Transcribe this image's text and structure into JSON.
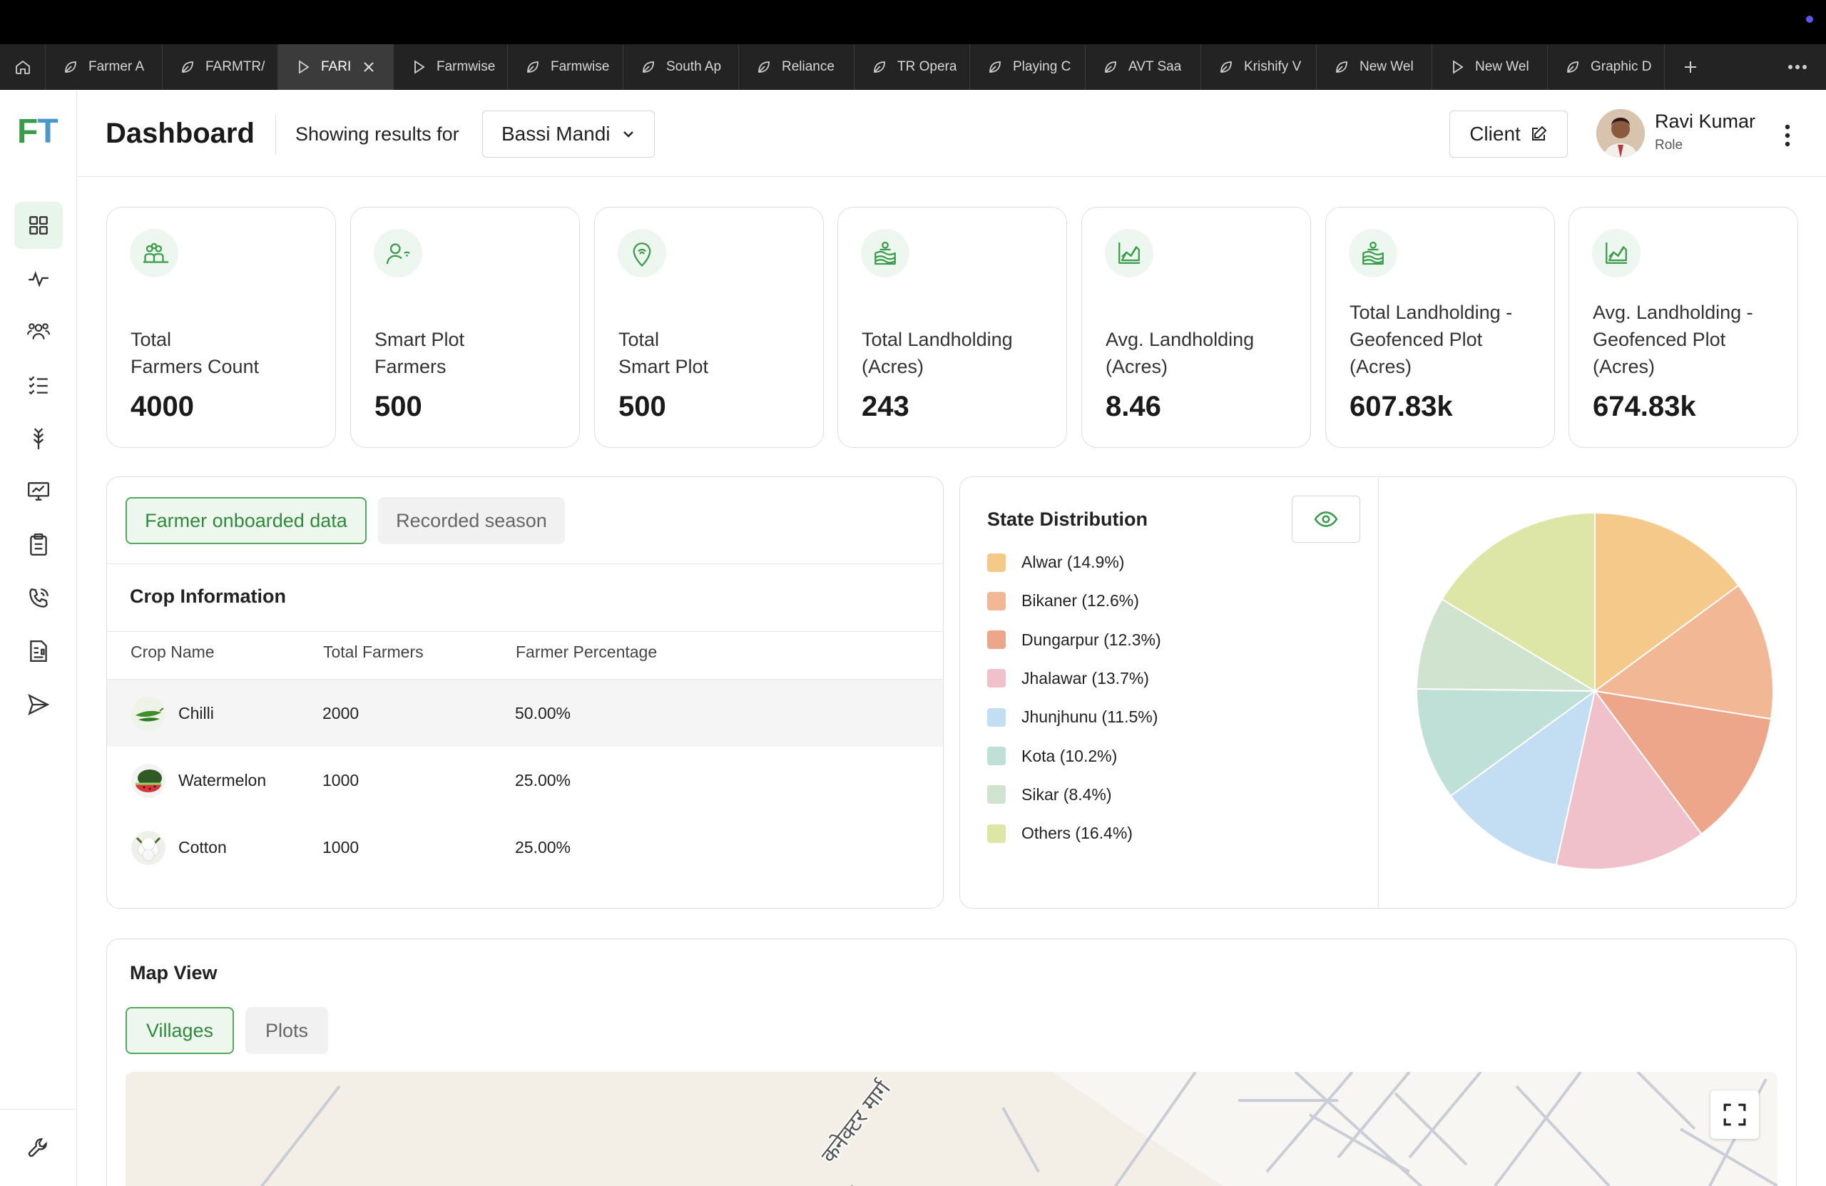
{
  "browser": {
    "tabs": [
      {
        "label": "Farmer A",
        "icon": "leaf-icon",
        "active": false
      },
      {
        "label": "FARMTR/",
        "icon": "leaf-icon",
        "active": false
      },
      {
        "label": "FARI",
        "icon": "play-icon",
        "active": true
      },
      {
        "label": "Farmwise",
        "icon": "play-icon",
        "active": false
      },
      {
        "label": "Farmwise",
        "icon": "leaf-icon",
        "active": false
      },
      {
        "label": "South Ap",
        "icon": "leaf-icon",
        "active": false
      },
      {
        "label": "Reliance",
        "icon": "leaf-icon",
        "active": false
      },
      {
        "label": "TR Opera",
        "icon": "leaf-icon",
        "active": false
      },
      {
        "label": "Playing C",
        "icon": "leaf-icon",
        "active": false
      },
      {
        "label": "AVT Saa",
        "icon": "leaf-icon",
        "active": false
      },
      {
        "label": "Krishify V",
        "icon": "leaf-icon",
        "active": false
      },
      {
        "label": "New Wel",
        "icon": "leaf-icon",
        "active": false
      },
      {
        "label": "New Wel",
        "icon": "play-icon",
        "active": false
      },
      {
        "label": "Graphic D",
        "icon": "leaf-icon",
        "active": false
      }
    ]
  },
  "app": {
    "logo_f": "F",
    "logo_t": "T",
    "brand_green": "#3a9b4b",
    "brand_blue": "#4a97c9"
  },
  "sidebar": {
    "items": [
      {
        "icon": "grid-icon",
        "active": true
      },
      {
        "icon": "activity-icon",
        "active": false
      },
      {
        "icon": "users-icon",
        "active": false
      },
      {
        "icon": "checklist-icon",
        "active": false
      },
      {
        "icon": "crop-icon",
        "active": false
      },
      {
        "icon": "monitor-chart-icon",
        "active": false
      },
      {
        "icon": "clipboard-icon",
        "active": false
      },
      {
        "icon": "phone-call-icon",
        "active": false
      },
      {
        "icon": "report-icon",
        "active": false
      },
      {
        "icon": "send-icon",
        "active": false
      }
    ],
    "bottom_icon": "wrench-icon"
  },
  "header": {
    "title": "Dashboard",
    "showing_label": "Showing results for",
    "location_value": "Bassi Mandi",
    "client_label": "Client",
    "user_name": "Ravi Kumar",
    "user_role": "Role"
  },
  "stats": [
    {
      "label": "Total\nFarmers Count",
      "value": "4000",
      "icon": "group-icon"
    },
    {
      "label": "Smart Plot\nFarmers",
      "value": "500",
      "icon": "user-signal-icon"
    },
    {
      "label": "Total\nSmart Plot",
      "value": "500",
      "icon": "location-pin-icon"
    },
    {
      "label": "Total Landholding\n(Acres)",
      "value": "243",
      "icon": "land-icon"
    },
    {
      "label": "Avg. Landholding\n(Acres)",
      "value": "8.46",
      "icon": "area-chart-icon"
    },
    {
      "label": "Total Landholding -\nGeofenced Plot\n(Acres)",
      "value": "607.83k",
      "icon": "land-icon"
    },
    {
      "label": "Avg. Landholding -\nGeofenced Plot\n(Acres)",
      "value": "674.83k",
      "icon": "area-chart-icon"
    }
  ],
  "crop_panel": {
    "tab_active": "Farmer onboarded data",
    "tab_inactive": "Recorded season",
    "title": "Crop Information",
    "columns": [
      "Crop Name",
      "Total Farmers",
      "Farmer Percentage"
    ],
    "rows": [
      {
        "name": "Chilli",
        "farmers": "2000",
        "percent": "50.00%"
      },
      {
        "name": "Watermelon",
        "farmers": "1000",
        "percent": "25.00%"
      },
      {
        "name": "Cotton",
        "farmers": "1000",
        "percent": "25.00%"
      }
    ]
  },
  "state_panel": {
    "title": "State Distribution",
    "legend": [
      {
        "label": "Alwar (14.9%)",
        "color": "#f5c98a"
      },
      {
        "label": "Bikaner (12.6%)",
        "color": "#f2b795"
      },
      {
        "label": "Dungarpur (12.3%)",
        "color": "#eea68a"
      },
      {
        "label": "Jhalawar (13.7%)",
        "color": "#f0c0cb"
      },
      {
        "label": "Jhunjhunu (11.5%)",
        "color": "#c3ddf3"
      },
      {
        "label": "Kota (10.2%)",
        "color": "#bfe0d6"
      },
      {
        "label": "Sikar (8.4%)",
        "color": "#cfe3cf"
      },
      {
        "label": "Others (16.4%)",
        "color": "#dde6a6"
      }
    ]
  },
  "chart_data": {
    "type": "pie",
    "title": "State Distribution",
    "categories": [
      "Alwar",
      "Bikaner",
      "Dungarpur",
      "Jhalawar",
      "Jhunjhunu",
      "Kota",
      "Sikar",
      "Others"
    ],
    "values": [
      14.9,
      12.6,
      12.3,
      13.7,
      11.5,
      10.2,
      8.4,
      16.4
    ],
    "colors": [
      "#f5c98a",
      "#f2b795",
      "#eea68a",
      "#f0c0cb",
      "#c3ddf3",
      "#bfe0d6",
      "#cfe3cf",
      "#dde6a6"
    ],
    "legend_position": "left"
  },
  "map_panel": {
    "title": "Map View",
    "tab_active": "Villages",
    "tab_inactive": "Plots",
    "road_label": "कनेक्टर मार्ग"
  }
}
